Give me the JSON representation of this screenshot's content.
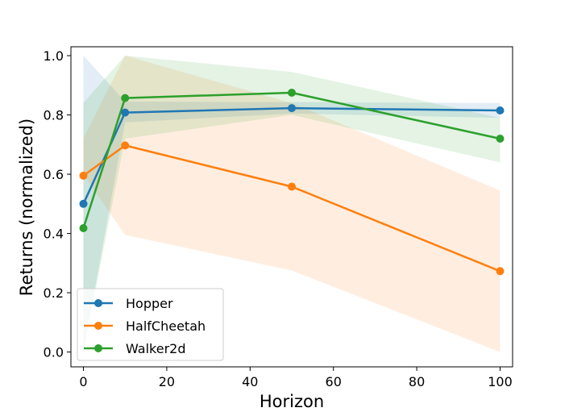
{
  "chart_data": {
    "type": "line",
    "title": "",
    "xlabel": "Horizon",
    "ylabel": "Returns (normalized)",
    "xlim": [
      -3,
      103
    ],
    "ylim": [
      -0.05,
      1.03
    ],
    "xticks": [
      0,
      20,
      40,
      60,
      80,
      100
    ],
    "yticks": [
      0.0,
      0.2,
      0.4,
      0.6,
      0.8,
      1.0
    ],
    "xtick_labels": [
      "0",
      "20",
      "40",
      "60",
      "80",
      "100"
    ],
    "ytick_labels": [
      "0.0",
      "0.2",
      "0.4",
      "0.6",
      "0.8",
      "1.0"
    ],
    "grid": false,
    "legend_position": "lower-left",
    "x": [
      0,
      10,
      50,
      100
    ],
    "series": [
      {
        "name": "Hopper",
        "color": "#1f77b4",
        "values": [
          0.5,
          0.808,
          0.823,
          0.815
        ],
        "lower": [
          0.0,
          0.775,
          0.805,
          0.79
        ],
        "upper": [
          1.0,
          0.845,
          0.843,
          0.84
        ]
      },
      {
        "name": "HalfCheetah",
        "color": "#ff7f0e",
        "values": [
          0.595,
          0.697,
          0.558,
          0.273
        ],
        "lower": [
          0.6,
          0.395,
          0.275,
          0.0
        ],
        "upper": [
          0.72,
          1.0,
          0.84,
          0.545
        ]
      },
      {
        "name": "Walker2d",
        "color": "#2ca02c",
        "values": [
          0.418,
          0.857,
          0.875,
          0.72
        ],
        "lower": [
          0.0,
          0.72,
          0.8,
          0.64
        ],
        "upper": [
          0.84,
          1.0,
          0.945,
          0.79
        ]
      }
    ]
  }
}
